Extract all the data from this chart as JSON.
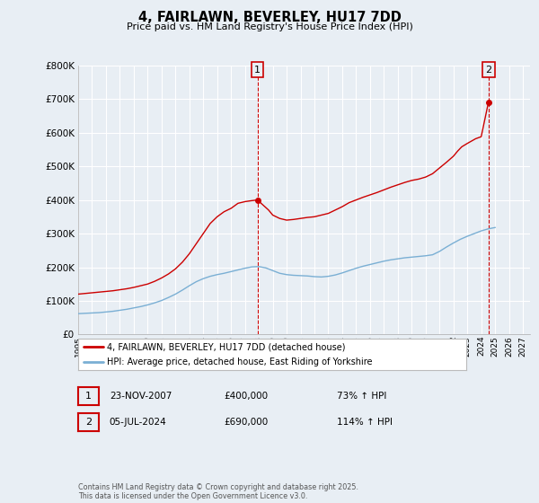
{
  "title": "4, FAIRLAWN, BEVERLEY, HU17 7DD",
  "subtitle": "Price paid vs. HM Land Registry's House Price Index (HPI)",
  "red_label": "4, FAIRLAWN, BEVERLEY, HU17 7DD (detached house)",
  "blue_label": "HPI: Average price, detached house, East Riding of Yorkshire",
  "annotation1_date": "23-NOV-2007",
  "annotation1_price": "£400,000",
  "annotation1_hpi": "73% ↑ HPI",
  "annotation2_date": "05-JUL-2024",
  "annotation2_price": "£690,000",
  "annotation2_hpi": "114% ↑ HPI",
  "footer": "Contains HM Land Registry data © Crown copyright and database right 2025.\nThis data is licensed under the Open Government Licence v3.0.",
  "red_color": "#cc0000",
  "blue_color": "#7aafd4",
  "annotation_color": "#cc0000",
  "bg_color": "#e8eef4",
  "grid_color": "#ffffff",
  "ylim": [
    0,
    800000
  ],
  "xlim_start": 1995.0,
  "xlim_end": 2027.5,
  "marker1_x": 2007.9,
  "marker1_y": 400000,
  "marker2_x": 2024.52,
  "marker2_y": 690000,
  "red_x": [
    1995.0,
    1995.5,
    1996.0,
    1996.5,
    1997.0,
    1997.5,
    1998.0,
    1998.5,
    1999.0,
    1999.5,
    2000.0,
    2000.5,
    2001.0,
    2001.5,
    2002.0,
    2002.5,
    2003.0,
    2003.5,
    2004.0,
    2004.5,
    2005.0,
    2005.5,
    2006.0,
    2006.5,
    2007.0,
    2007.5,
    2007.9,
    2008.3,
    2008.7,
    2009.0,
    2009.5,
    2010.0,
    2010.5,
    2011.0,
    2011.5,
    2012.0,
    2012.5,
    2013.0,
    2013.5,
    2014.0,
    2014.5,
    2015.0,
    2015.5,
    2016.0,
    2016.5,
    2017.0,
    2017.5,
    2018.0,
    2018.5,
    2019.0,
    2019.5,
    2020.0,
    2020.5,
    2021.0,
    2021.5,
    2022.0,
    2022.3,
    2022.6,
    2023.0,
    2023.3,
    2023.6,
    2024.0,
    2024.52
  ],
  "red_y": [
    120000,
    122000,
    124000,
    126000,
    128000,
    130000,
    133000,
    136000,
    140000,
    145000,
    150000,
    158000,
    168000,
    180000,
    195000,
    215000,
    240000,
    270000,
    300000,
    330000,
    350000,
    365000,
    375000,
    390000,
    395000,
    398000,
    400000,
    385000,
    370000,
    355000,
    345000,
    340000,
    342000,
    345000,
    348000,
    350000,
    355000,
    360000,
    370000,
    380000,
    392000,
    400000,
    408000,
    415000,
    422000,
    430000,
    438000,
    445000,
    452000,
    458000,
    462000,
    468000,
    478000,
    495000,
    512000,
    530000,
    545000,
    558000,
    568000,
    575000,
    582000,
    588000,
    690000
  ],
  "blue_x": [
    1995.0,
    1995.5,
    1996.0,
    1996.5,
    1997.0,
    1997.5,
    1998.0,
    1998.5,
    1999.0,
    1999.5,
    2000.0,
    2000.5,
    2001.0,
    2001.5,
    2002.0,
    2002.5,
    2003.0,
    2003.5,
    2004.0,
    2004.5,
    2005.0,
    2005.5,
    2006.0,
    2006.5,
    2007.0,
    2007.5,
    2008.0,
    2008.5,
    2009.0,
    2009.5,
    2010.0,
    2010.5,
    2011.0,
    2011.5,
    2012.0,
    2012.5,
    2013.0,
    2013.5,
    2014.0,
    2014.5,
    2015.0,
    2015.5,
    2016.0,
    2016.5,
    2017.0,
    2017.5,
    2018.0,
    2018.5,
    2019.0,
    2019.5,
    2020.0,
    2020.5,
    2021.0,
    2021.5,
    2022.0,
    2022.5,
    2023.0,
    2023.5,
    2024.0,
    2024.5,
    2025.0
  ],
  "blue_y": [
    62000,
    63000,
    64000,
    65000,
    67000,
    69000,
    72000,
    75000,
    79000,
    83000,
    88000,
    94000,
    101000,
    110000,
    120000,
    132000,
    145000,
    157000,
    166000,
    173000,
    178000,
    182000,
    187000,
    192000,
    197000,
    201000,
    202000,
    198000,
    190000,
    182000,
    178000,
    176000,
    175000,
    174000,
    172000,
    171000,
    173000,
    177000,
    183000,
    190000,
    197000,
    203000,
    208000,
    213000,
    218000,
    222000,
    225000,
    228000,
    230000,
    232000,
    234000,
    237000,
    247000,
    260000,
    272000,
    283000,
    292000,
    300000,
    308000,
    314000,
    318000
  ]
}
